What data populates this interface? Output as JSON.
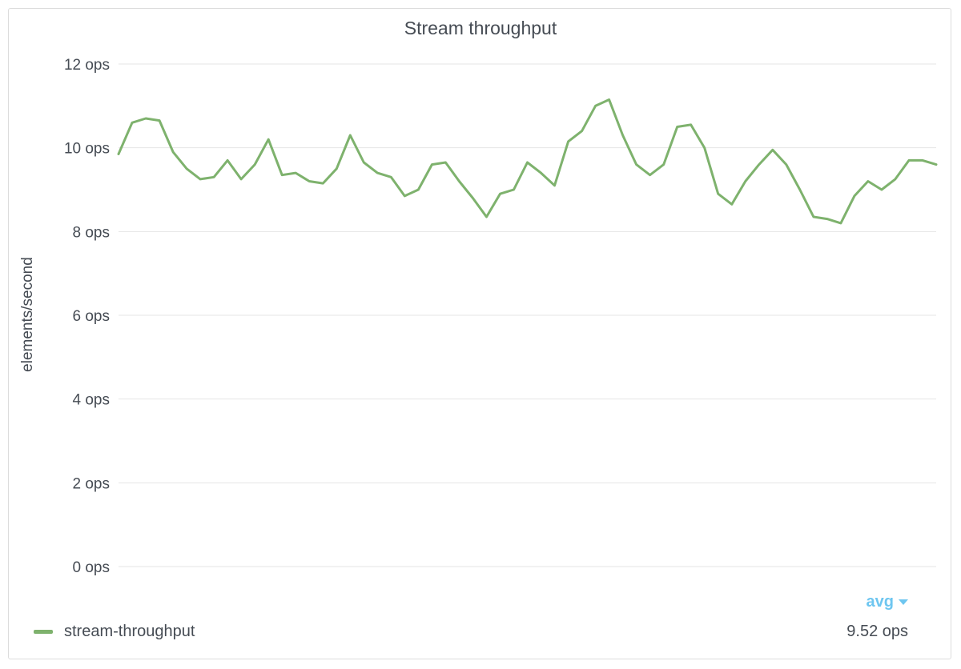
{
  "panel": {
    "title": "Stream throughput"
  },
  "legend": {
    "sort_label": "avg",
    "items": [
      {
        "name": "stream-throughput",
        "value": "9.52 ops"
      }
    ]
  },
  "colors": {
    "series": "#7eb26d",
    "grid": "#e4e4e4",
    "text": "#464c54",
    "accent": "#6ec6f0"
  },
  "chart_data": {
    "type": "line",
    "title": "Stream throughput",
    "ylabel": "elements/second",
    "xlabel": "",
    "ylim": [
      0,
      12
    ],
    "yticks": [
      {
        "value": 0,
        "label": "0 ops"
      },
      {
        "value": 2,
        "label": "2 ops"
      },
      {
        "value": 4,
        "label": "4 ops"
      },
      {
        "value": 6,
        "label": "6 ops"
      },
      {
        "value": 8,
        "label": "8 ops"
      },
      {
        "value": 10,
        "label": "10 ops"
      },
      {
        "value": 12,
        "label": "12 ops"
      }
    ],
    "grid": true,
    "legend_position": "bottom",
    "series": [
      {
        "name": "stream-throughput",
        "color": "#7eb26d",
        "values": [
          9.85,
          10.6,
          10.7,
          10.65,
          9.9,
          9.5,
          9.25,
          9.3,
          9.7,
          9.25,
          9.6,
          10.2,
          9.35,
          9.4,
          9.2,
          9.15,
          9.5,
          10.3,
          9.65,
          9.4,
          9.3,
          8.85,
          9.0,
          9.6,
          9.65,
          9.2,
          8.8,
          8.35,
          8.9,
          9.0,
          9.65,
          9.4,
          9.1,
          10.15,
          10.4,
          11.0,
          11.15,
          10.3,
          9.6,
          9.35,
          9.6,
          10.5,
          10.55,
          10.0,
          8.9,
          8.65,
          9.2,
          9.6,
          9.95,
          9.6,
          9.0,
          8.35,
          8.3,
          8.2,
          8.85,
          9.2,
          9.0,
          9.25,
          9.7,
          9.7,
          9.6
        ]
      }
    ]
  }
}
